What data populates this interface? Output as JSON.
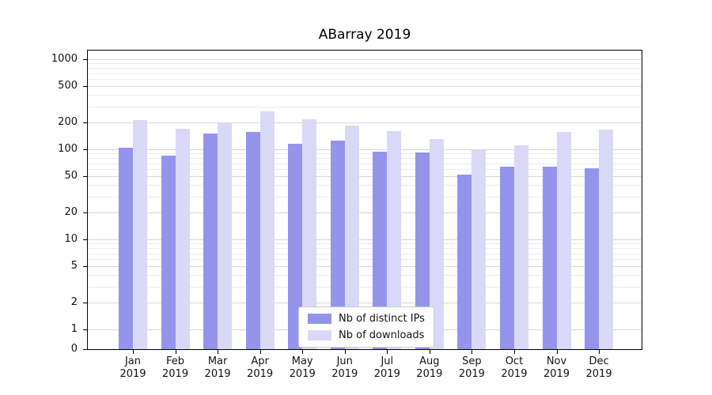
{
  "chart_data": {
    "type": "bar",
    "title": "ABarray 2019",
    "categories": [
      "Jan",
      "Feb",
      "Mar",
      "Apr",
      "May",
      "Jun",
      "Jul",
      "Aug",
      "Sep",
      "Oct",
      "Nov",
      "Dec"
    ],
    "x_labels": [
      [
        "Jan",
        "2019"
      ],
      [
        "Feb",
        "2019"
      ],
      [
        "Mar",
        "2019"
      ],
      [
        "Apr",
        "2019"
      ],
      [
        "May",
        "2019"
      ],
      [
        "Jun",
        "2019"
      ],
      [
        "Jul",
        "2019"
      ],
      [
        "Aug",
        "2019"
      ],
      [
        "Sep",
        "2019"
      ],
      [
        "Oct",
        "2019"
      ],
      [
        "Nov",
        "2019"
      ],
      [
        "Dec",
        "2019"
      ]
    ],
    "series": [
      {
        "name": "Nb of distinct IPs",
        "color": "#9494ec",
        "values": [
          105,
          85,
          150,
          155,
          115,
          125,
          95,
          93,
          52,
          64,
          64,
          62
        ]
      },
      {
        "name": "Nb of downloads",
        "color": "#d9d9f7",
        "values": [
          210,
          170,
          195,
          265,
          215,
          185,
          160,
          130,
          98,
          110,
          155,
          165
        ]
      }
    ],
    "y_ticks": [
      1000,
      500,
      200,
      100,
      50,
      20,
      10,
      5,
      2,
      1,
      0
    ],
    "y_scale": "symlog",
    "ylim": [
      0,
      1000
    ],
    "grid": true,
    "legend": {
      "position": "lower center"
    }
  }
}
